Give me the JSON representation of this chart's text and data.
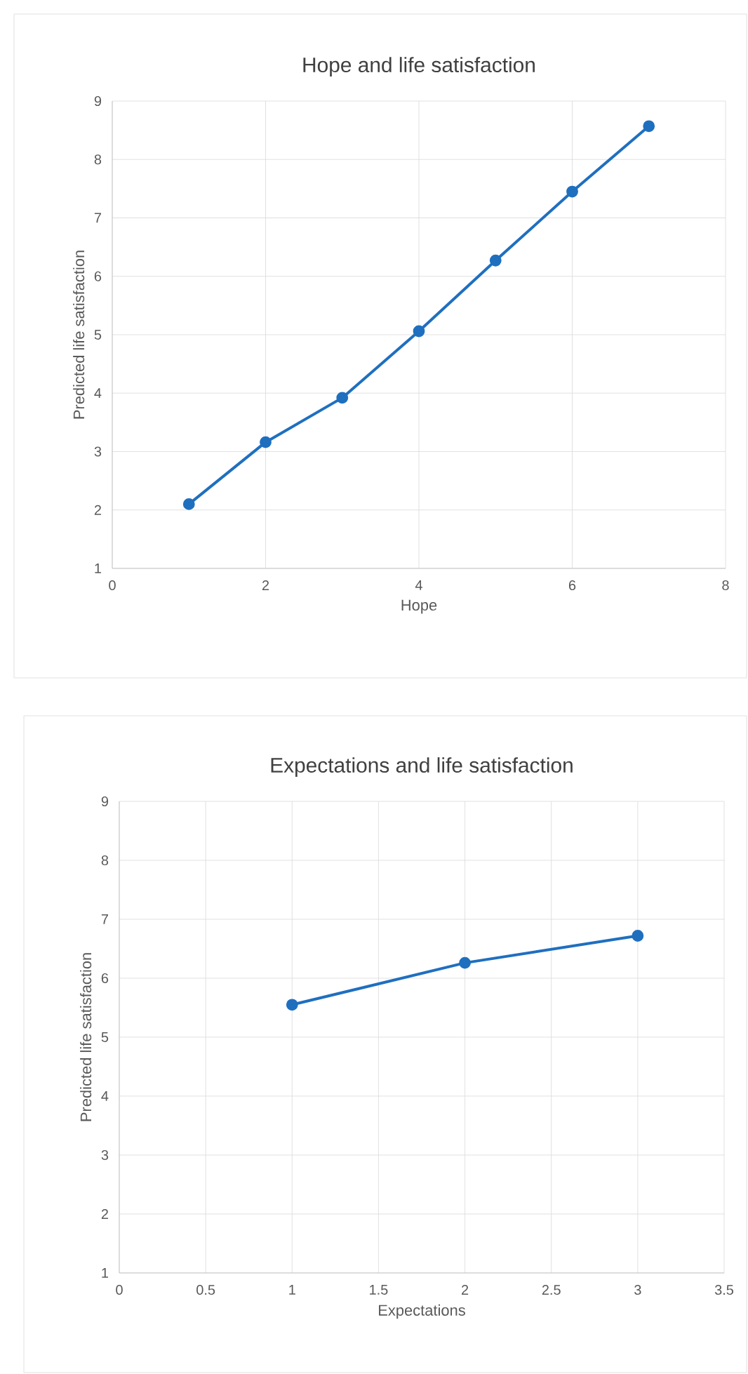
{
  "chart_data": [
    {
      "type": "line",
      "title": "Hope and life satisfaction",
      "xlabel": "Hope",
      "ylabel": "Predicted life satisfaction",
      "x": [
        1,
        2,
        3,
        4,
        5,
        6,
        7
      ],
      "series": [
        {
          "color": "#1f6fbf",
          "values": [
            2.1,
            3.16,
            3.92,
            5.06,
            6.27,
            7.45,
            8.57
          ]
        }
      ],
      "xlim": [
        0,
        8
      ],
      "xticks": [
        0,
        2,
        4,
        6,
        8
      ],
      "ylim": [
        1,
        9
      ],
      "yticks": [
        1,
        2,
        3,
        4,
        5,
        6,
        7,
        8,
        9
      ],
      "grid": true,
      "marker": "circle",
      "line_style": "solid"
    },
    {
      "type": "line",
      "title": "Expectations and life satisfaction",
      "xlabel": "Expectations",
      "ylabel": "Predicted life satisfaction",
      "x": [
        1,
        2,
        3
      ],
      "series": [
        {
          "color": "#1f6fbf",
          "values": [
            5.55,
            6.26,
            6.72
          ]
        }
      ],
      "xlim": [
        0,
        3.5
      ],
      "xticks": [
        0,
        0.5,
        1,
        1.5,
        2,
        2.5,
        3,
        3.5
      ],
      "ylim": [
        1,
        9
      ],
      "yticks": [
        1,
        2,
        3,
        4,
        5,
        6,
        7,
        8,
        9
      ],
      "grid": true,
      "marker": "circle",
      "line_style": "solid"
    }
  ]
}
